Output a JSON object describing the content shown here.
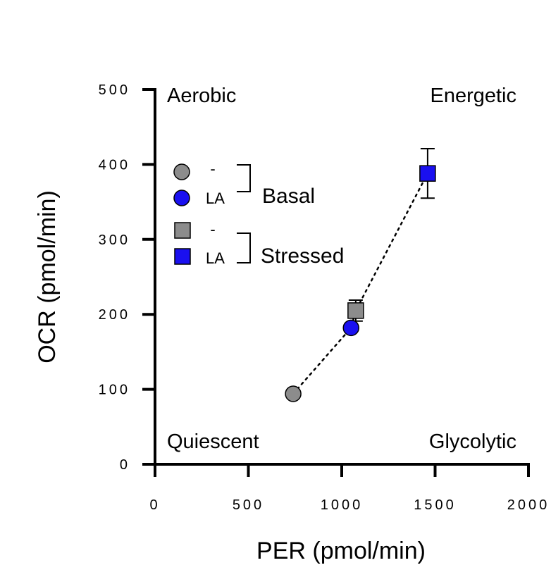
{
  "chart_data": {
    "type": "scatter",
    "title": "",
    "xlabel": "PER (pmol/min)",
    "ylabel": "OCR (pmol/min)",
    "xlim": [
      0,
      2000
    ],
    "ylim": [
      0,
      500
    ],
    "x_ticks": [
      0,
      500,
      1000,
      1500,
      2000
    ],
    "y_ticks": [
      0,
      100,
      200,
      300,
      400,
      500
    ],
    "x_tick_labels": [
      "0",
      "500",
      "1000",
      "1500",
      "2000"
    ],
    "y_tick_labels": [
      "0",
      "100",
      "200",
      "300",
      "400",
      "500"
    ],
    "quadrants": {
      "top_left": "Aerobic",
      "top_right": "Energetic",
      "bottom_left": "Quiescent",
      "bottom_right": "Glycolytic"
    },
    "series": [
      {
        "name": "-",
        "group": "Basal",
        "marker": "circle",
        "color": "#8c8c8c",
        "points": [
          {
            "x": 740,
            "y": 94,
            "y_err": 0
          }
        ]
      },
      {
        "name": "LA",
        "group": "Basal",
        "marker": "circle",
        "color": "#1a10f0",
        "points": [
          {
            "x": 1050,
            "y": 182,
            "y_err": 0
          }
        ]
      },
      {
        "name": "-",
        "group": "Stressed",
        "marker": "square",
        "color": "#8c8c8c",
        "points": [
          {
            "x": 1075,
            "y": 205,
            "y_err": 14
          }
        ]
      },
      {
        "name": "LA",
        "group": "Stressed",
        "marker": "square",
        "color": "#1a10f0",
        "points": [
          {
            "x": 1460,
            "y": 388,
            "y_err": 33
          }
        ]
      }
    ],
    "connector": {
      "style": "dotted",
      "order_x": [
        740,
        1050,
        1075,
        1460
      ],
      "order_y": [
        94,
        182,
        205,
        388
      ]
    },
    "legend": {
      "placement": "top-left",
      "groups": [
        {
          "label": "Basal",
          "entries": [
            "-",
            "LA"
          ]
        },
        {
          "label": "Stressed",
          "entries": [
            "-",
            "LA"
          ]
        }
      ]
    },
    "grid": false
  }
}
